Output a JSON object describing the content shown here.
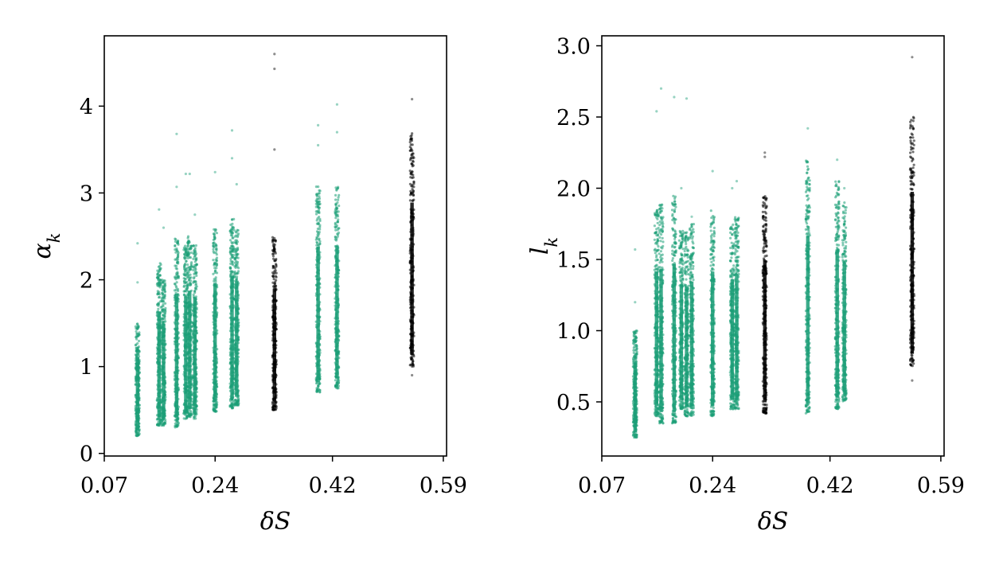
{
  "chart_data": [
    {
      "type": "scatter",
      "xlabel": "δS",
      "ylabel": "α",
      "ylabel_sub": "k",
      "xlim": [
        0.07,
        0.595
      ],
      "ylim": [
        -0.03,
        4.81
      ],
      "xticks": [
        0.07,
        0.24,
        0.42,
        0.59
      ],
      "xtick_labels": [
        "0.07",
        "0.24",
        "0.42",
        "0.59"
      ],
      "yticks": [
        0,
        1,
        2,
        3,
        4
      ],
      "ytick_labels": [
        "0",
        "1",
        "2",
        "3",
        "4"
      ],
      "grid": false,
      "colors": {
        "green": "#1b9e77",
        "black": "#000000"
      },
      "groups": [
        {
          "x": 0.121,
          "min": 0.2,
          "max": 1.5,
          "color": "green",
          "outliers": [
            1.97,
            2.42
          ]
        },
        {
          "x": 0.154,
          "min": 0.32,
          "max": 2.2,
          "color": "green",
          "outliers": [
            2.81
          ]
        },
        {
          "x": 0.161,
          "min": 0.32,
          "max": 2.0,
          "color": "green",
          "outliers": [
            2.6
          ]
        },
        {
          "x": 0.181,
          "min": 0.3,
          "max": 2.5,
          "color": "green",
          "outliers": [
            3.07,
            3.68
          ]
        },
        {
          "x": 0.195,
          "min": 0.4,
          "max": 2.4,
          "color": "green",
          "outliers": [
            3.22
          ]
        },
        {
          "x": 0.201,
          "min": 0.42,
          "max": 2.5,
          "color": "green",
          "outliers": [
            3.22
          ]
        },
        {
          "x": 0.209,
          "min": 0.4,
          "max": 2.4,
          "color": "green",
          "outliers": [
            2.75
          ]
        },
        {
          "x": 0.24,
          "min": 0.48,
          "max": 2.6,
          "color": "green",
          "outliers": [
            3.24
          ]
        },
        {
          "x": 0.266,
          "min": 0.52,
          "max": 2.7,
          "color": "green",
          "outliers": [
            3.4,
            3.72
          ]
        },
        {
          "x": 0.273,
          "min": 0.55,
          "max": 2.6,
          "color": "green",
          "outliers": [
            3.1
          ]
        },
        {
          "x": 0.331,
          "min": 0.5,
          "max": 2.5,
          "color": "black",
          "outliers": [
            3.5,
            4.43,
            4.6
          ]
        },
        {
          "x": 0.398,
          "min": 0.7,
          "max": 3.1,
          "color": "green",
          "outliers": [
            3.55,
            3.78
          ]
        },
        {
          "x": 0.427,
          "min": 0.75,
          "max": 3.1,
          "color": "green",
          "outliers": [
            3.7,
            4.02
          ]
        },
        {
          "x": 0.542,
          "min": 1.0,
          "max": 3.7,
          "color": "black",
          "outliers": [
            4.08,
            0.9
          ]
        }
      ]
    },
    {
      "type": "scatter",
      "xlabel": "δS",
      "ylabel": "l",
      "ylabel_sub": "k",
      "xlim": [
        0.07,
        0.595
      ],
      "ylim": [
        0.12,
        3.07
      ],
      "xticks": [
        0.07,
        0.24,
        0.42,
        0.59
      ],
      "xtick_labels": [
        "0.07",
        "0.24",
        "0.42",
        "0.59"
      ],
      "yticks": [
        0.5,
        1.0,
        1.5,
        2.0,
        2.5,
        3.0
      ],
      "ytick_labels": [
        "0.5",
        "1.0",
        "1.5",
        "2.0",
        "2.5",
        "3.0"
      ],
      "grid": false,
      "colors": {
        "green": "#1b9e77",
        "black": "#000000"
      },
      "groups": [
        {
          "x": 0.121,
          "min": 0.25,
          "max": 1.0,
          "color": "green",
          "outliers": [
            1.2,
            1.57
          ]
        },
        {
          "x": 0.154,
          "min": 0.4,
          "max": 1.85,
          "color": "green",
          "outliers": [
            2.54
          ]
        },
        {
          "x": 0.161,
          "min": 0.35,
          "max": 1.9,
          "color": "green",
          "outliers": [
            2.7
          ]
        },
        {
          "x": 0.181,
          "min": 0.35,
          "max": 1.95,
          "color": "green",
          "outliers": [
            2.64
          ]
        },
        {
          "x": 0.192,
          "min": 0.45,
          "max": 1.7,
          "color": "green",
          "outliers": [
            2.0
          ]
        },
        {
          "x": 0.2,
          "min": 0.4,
          "max": 1.7,
          "color": "green",
          "outliers": [
            2.63
          ]
        },
        {
          "x": 0.208,
          "min": 0.4,
          "max": 1.75,
          "color": "green",
          "outliers": [
            1.8
          ]
        },
        {
          "x": 0.24,
          "min": 0.4,
          "max": 1.85,
          "color": "green",
          "outliers": [
            2.12
          ]
        },
        {
          "x": 0.27,
          "min": 0.45,
          "max": 1.75,
          "color": "green",
          "outliers": [
            2.0
          ]
        },
        {
          "x": 0.277,
          "min": 0.45,
          "max": 1.8,
          "color": "green",
          "outliers": [
            2.05
          ]
        },
        {
          "x": 0.32,
          "min": 0.42,
          "max": 1.95,
          "color": "black",
          "outliers": [
            2.22,
            2.25
          ]
        },
        {
          "x": 0.386,
          "min": 0.42,
          "max": 2.2,
          "color": "green",
          "outliers": [
            2.42
          ]
        },
        {
          "x": 0.431,
          "min": 0.45,
          "max": 2.05,
          "color": "green",
          "outliers": [
            2.2
          ]
        },
        {
          "x": 0.442,
          "min": 0.5,
          "max": 1.9,
          "color": "green",
          "outliers": [
            2.0
          ]
        },
        {
          "x": 0.546,
          "min": 0.75,
          "max": 2.5,
          "color": "black",
          "outliers": [
            2.92,
            0.65
          ]
        }
      ]
    }
  ]
}
